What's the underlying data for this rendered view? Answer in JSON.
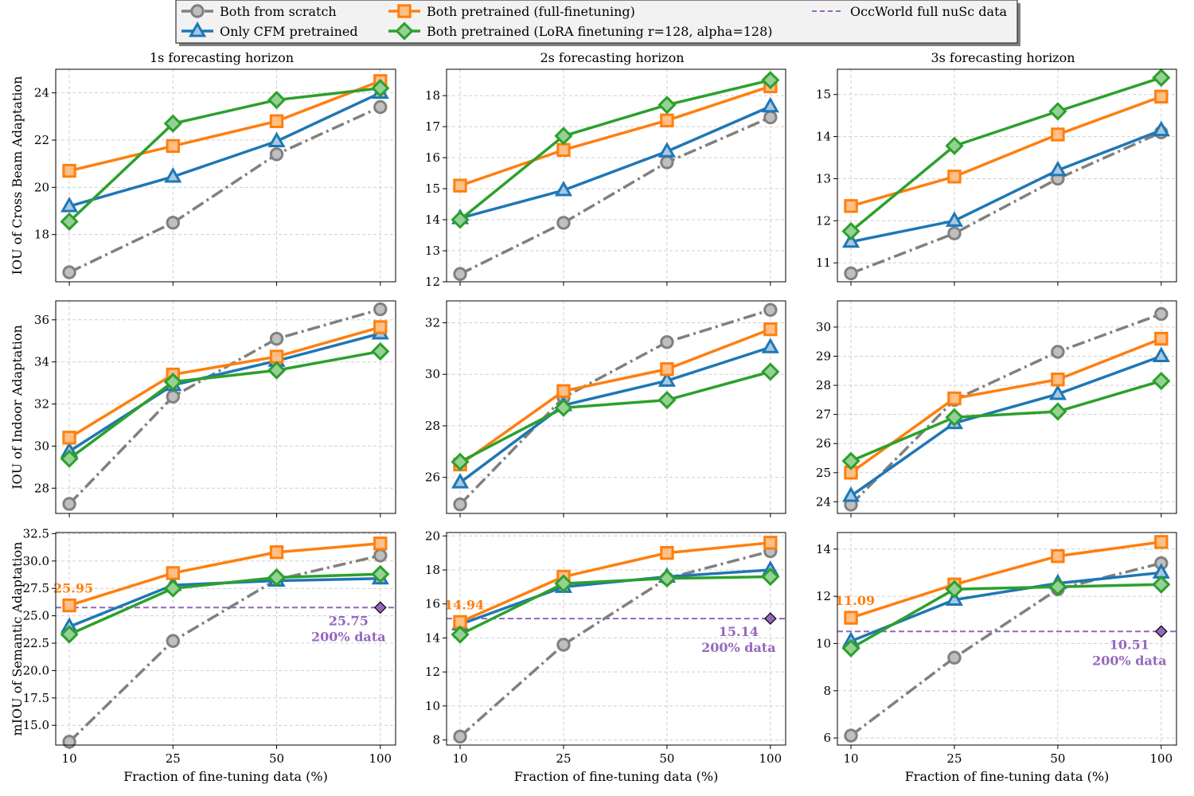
{
  "colors": {
    "scratch": "#808080",
    "cfm": "#1f77b4",
    "full": "#ff7f0e",
    "lora": "#2ca02c",
    "occworld": "#9467bd"
  },
  "legend": [
    {
      "key": "scratch",
      "label": "Both from scratch",
      "marker": "circle",
      "dash": "dashdot"
    },
    {
      "key": "cfm",
      "label": "Only CFM pretrained",
      "marker": "triangle",
      "dash": "solid"
    },
    {
      "key": "full",
      "label": "Both pretrained (full-finetuning)",
      "marker": "square",
      "dash": "solid"
    },
    {
      "key": "lora",
      "label": "Both pretrained (LoRA finetuning r=128, alpha=128)",
      "marker": "diamond",
      "dash": "solid"
    },
    {
      "key": "occworld",
      "label": "OccWorld full nuSc data",
      "marker": "none",
      "dash": "dashed"
    }
  ],
  "chart_data": [
    {
      "type": "line",
      "row": 0,
      "col": 0,
      "title": "1s forecasting horizon",
      "ylabel": "IOU of Cross Beam Adaptation",
      "xlabel": "",
      "categories": [
        "10",
        "25",
        "50",
        "100"
      ],
      "ylim": [
        16,
        25
      ],
      "yticks": [
        18,
        20,
        22,
        24
      ],
      "grid": true,
      "series": [
        {
          "key": "scratch",
          "values": [
            16.4,
            18.5,
            21.4,
            23.4
          ]
        },
        {
          "key": "cfm",
          "values": [
            19.2,
            20.45,
            21.95,
            24.0
          ]
        },
        {
          "key": "full",
          "values": [
            20.7,
            21.75,
            22.8,
            24.5
          ]
        },
        {
          "key": "lora",
          "values": [
            18.55,
            22.7,
            23.7,
            24.2
          ]
        }
      ]
    },
    {
      "type": "line",
      "row": 0,
      "col": 1,
      "title": "2s forecasting horizon",
      "ylabel": "",
      "xlabel": "",
      "categories": [
        "10",
        "25",
        "50",
        "100"
      ],
      "ylim": [
        12,
        18.85
      ],
      "yticks": [
        12,
        13,
        14,
        15,
        16,
        17,
        18
      ],
      "grid": true,
      "series": [
        {
          "key": "scratch",
          "values": [
            12.25,
            13.9,
            15.85,
            17.3
          ]
        },
        {
          "key": "cfm",
          "values": [
            14.05,
            14.95,
            16.2,
            17.65
          ]
        },
        {
          "key": "full",
          "values": [
            15.1,
            16.25,
            17.2,
            18.3
          ]
        },
        {
          "key": "lora",
          "values": [
            14.0,
            16.7,
            17.7,
            18.5
          ]
        }
      ]
    },
    {
      "type": "line",
      "row": 0,
      "col": 2,
      "title": "3s forecasting horizon",
      "ylabel": "",
      "xlabel": "",
      "categories": [
        "10",
        "25",
        "50",
        "100"
      ],
      "ylim": [
        10.55,
        15.6
      ],
      "yticks": [
        11,
        12,
        13,
        14,
        15
      ],
      "grid": true,
      "series": [
        {
          "key": "scratch",
          "values": [
            10.75,
            11.7,
            13.0,
            14.1
          ]
        },
        {
          "key": "cfm",
          "values": [
            11.5,
            12.0,
            13.2,
            14.15
          ]
        },
        {
          "key": "full",
          "values": [
            12.35,
            13.05,
            14.05,
            14.95
          ]
        },
        {
          "key": "lora",
          "values": [
            11.75,
            13.78,
            14.6,
            15.4
          ]
        }
      ]
    },
    {
      "type": "line",
      "row": 1,
      "col": 0,
      "title": "",
      "ylabel": "IOU of Indoor Adaptation",
      "xlabel": "",
      "categories": [
        "10",
        "25",
        "50",
        "100"
      ],
      "ylim": [
        26.8,
        36.9
      ],
      "yticks": [
        28,
        30,
        32,
        34,
        36
      ],
      "grid": true,
      "series": [
        {
          "key": "scratch",
          "values": [
            27.25,
            32.35,
            35.1,
            36.5
          ]
        },
        {
          "key": "cfm",
          "values": [
            29.75,
            32.9,
            34.05,
            35.35
          ]
        },
        {
          "key": "full",
          "values": [
            30.4,
            33.4,
            34.25,
            35.65
          ]
        },
        {
          "key": "lora",
          "values": [
            29.4,
            33.05,
            33.6,
            34.5
          ]
        }
      ]
    },
    {
      "type": "line",
      "row": 1,
      "col": 1,
      "title": "",
      "ylabel": "",
      "xlabel": "",
      "categories": [
        "10",
        "25",
        "50",
        "100"
      ],
      "ylim": [
        24.6,
        32.85
      ],
      "yticks": [
        26,
        28,
        30,
        32
      ],
      "grid": true,
      "series": [
        {
          "key": "scratch",
          "values": [
            24.95,
            29.1,
            31.25,
            32.5
          ]
        },
        {
          "key": "cfm",
          "values": [
            25.8,
            28.8,
            29.75,
            31.05
          ]
        },
        {
          "key": "full",
          "values": [
            26.5,
            29.35,
            30.2,
            31.75
          ]
        },
        {
          "key": "lora",
          "values": [
            26.6,
            28.7,
            29.0,
            30.1
          ]
        }
      ]
    },
    {
      "type": "line",
      "row": 1,
      "col": 2,
      "title": "",
      "ylabel": "",
      "xlabel": "",
      "categories": [
        "10",
        "25",
        "50",
        "100"
      ],
      "ylim": [
        23.6,
        30.9
      ],
      "yticks": [
        24,
        25,
        26,
        27,
        28,
        29,
        30
      ],
      "grid": true,
      "series": [
        {
          "key": "scratch",
          "values": [
            23.9,
            27.5,
            29.15,
            30.45
          ]
        },
        {
          "key": "cfm",
          "values": [
            24.2,
            26.7,
            27.7,
            29.0
          ]
        },
        {
          "key": "full",
          "values": [
            25.0,
            27.55,
            28.2,
            29.6
          ]
        },
        {
          "key": "lora",
          "values": [
            25.4,
            26.9,
            27.1,
            28.15
          ]
        }
      ]
    },
    {
      "type": "line",
      "row": 2,
      "col": 0,
      "title": "",
      "ylabel": "mIOU of Semantic Adaptation",
      "xlabel": "Fraction of fine-tuning data (%)",
      "categories": [
        "10",
        "25",
        "50",
        "100"
      ],
      "ylim": [
        13.2,
        32.6
      ],
      "yticks": [
        15.0,
        17.5,
        20.0,
        22.5,
        25.0,
        27.5,
        30.0,
        32.5
      ],
      "ytick_decimals": 1,
      "grid": true,
      "series": [
        {
          "key": "scratch",
          "values": [
            13.5,
            22.7,
            28.3,
            30.5
          ]
        },
        {
          "key": "cfm",
          "values": [
            24.0,
            27.8,
            28.2,
            28.4
          ]
        },
        {
          "key": "full",
          "values": [
            25.95,
            28.9,
            30.8,
            31.6
          ]
        },
        {
          "key": "lora",
          "values": [
            23.3,
            27.5,
            28.5,
            28.8
          ]
        }
      ],
      "reference": {
        "key": "occworld",
        "value": 25.75,
        "label_value": "25.75",
        "label_text": "200% data"
      },
      "first_point_label": "25.95"
    },
    {
      "type": "line",
      "row": 2,
      "col": 1,
      "title": "",
      "ylabel": "",
      "xlabel": "Fraction of fine-tuning data (%)",
      "categories": [
        "10",
        "25",
        "50",
        "100"
      ],
      "ylim": [
        7.7,
        20.2
      ],
      "yticks": [
        8,
        10,
        12,
        14,
        16,
        18,
        20
      ],
      "grid": true,
      "series": [
        {
          "key": "scratch",
          "values": [
            8.2,
            13.6,
            17.5,
            19.1
          ]
        },
        {
          "key": "cfm",
          "values": [
            14.8,
            17.0,
            17.6,
            18.0
          ]
        },
        {
          "key": "full",
          "values": [
            14.94,
            17.6,
            19.0,
            19.6
          ]
        },
        {
          "key": "lora",
          "values": [
            14.2,
            17.2,
            17.5,
            17.6
          ]
        }
      ],
      "reference": {
        "key": "occworld",
        "value": 15.14,
        "label_value": "15.14",
        "label_text": "200% data"
      },
      "first_point_label": "14.94"
    },
    {
      "type": "line",
      "row": 2,
      "col": 2,
      "title": "",
      "ylabel": "",
      "xlabel": "Fraction of fine-tuning data (%)",
      "categories": [
        "10",
        "25",
        "50",
        "100"
      ],
      "ylim": [
        5.7,
        14.7
      ],
      "yticks": [
        6,
        8,
        10,
        12,
        14
      ],
      "grid": true,
      "series": [
        {
          "key": "scratch",
          "values": [
            6.1,
            9.4,
            12.3,
            13.4
          ]
        },
        {
          "key": "cfm",
          "values": [
            10.1,
            11.85,
            12.55,
            13.0
          ]
        },
        {
          "key": "full",
          "values": [
            11.09,
            12.5,
            13.7,
            14.3
          ]
        },
        {
          "key": "lora",
          "values": [
            9.8,
            12.3,
            12.4,
            12.5
          ]
        }
      ],
      "reference": {
        "key": "occworld",
        "value": 10.51,
        "label_value": "10.51",
        "label_text": "200% data"
      },
      "first_point_label": "11.09"
    }
  ]
}
